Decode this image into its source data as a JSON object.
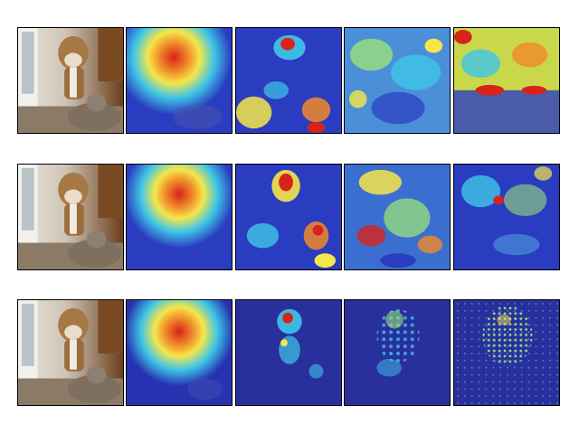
{
  "figure": {
    "rows": [
      {
        "panels": [
          "photo",
          "heatmap",
          "heatmap",
          "heatmap",
          "heatmap"
        ]
      },
      {
        "panels": [
          "photo",
          "heatmap",
          "heatmap",
          "heatmap",
          "heatmap"
        ]
      },
      {
        "panels": [
          "photo",
          "heatmap",
          "heatmap",
          "heatmap",
          "heatmap"
        ]
      }
    ],
    "colors": {
      "jet_blue": "#1a2bb8",
      "jet_cyan": "#3fc6e6",
      "jet_yellow": "#f5e64a",
      "jet_red": "#d8231b",
      "photo_wood": "#7a4a22",
      "photo_light": "#e8e1d6"
    }
  }
}
